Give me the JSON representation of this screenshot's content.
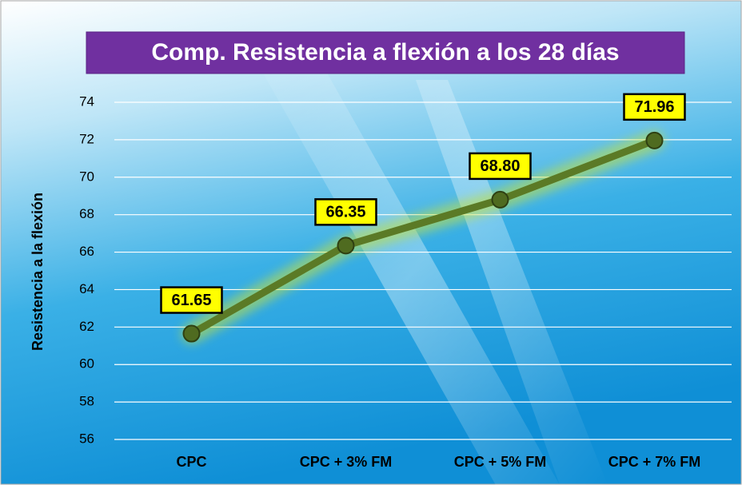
{
  "chart_data": {
    "type": "line",
    "title": "Comp. Resistencia a flexión a los 28 días",
    "y_label": "Resistencia a la flexión",
    "categories": [
      "CPC",
      "CPC + 3% FM",
      "CPC + 5% FM",
      "CPC + 7% FM"
    ],
    "values": [
      61.65,
      66.35,
      68.8,
      71.96
    ],
    "value_labels": [
      "61.65",
      "66.35",
      "68.80",
      "71.96"
    ],
    "color": "#5b7a26",
    "ylim": [
      56,
      74
    ],
    "yticks": [
      56,
      58,
      60,
      62,
      64,
      66,
      68,
      70,
      72,
      74
    ],
    "grid": true
  }
}
